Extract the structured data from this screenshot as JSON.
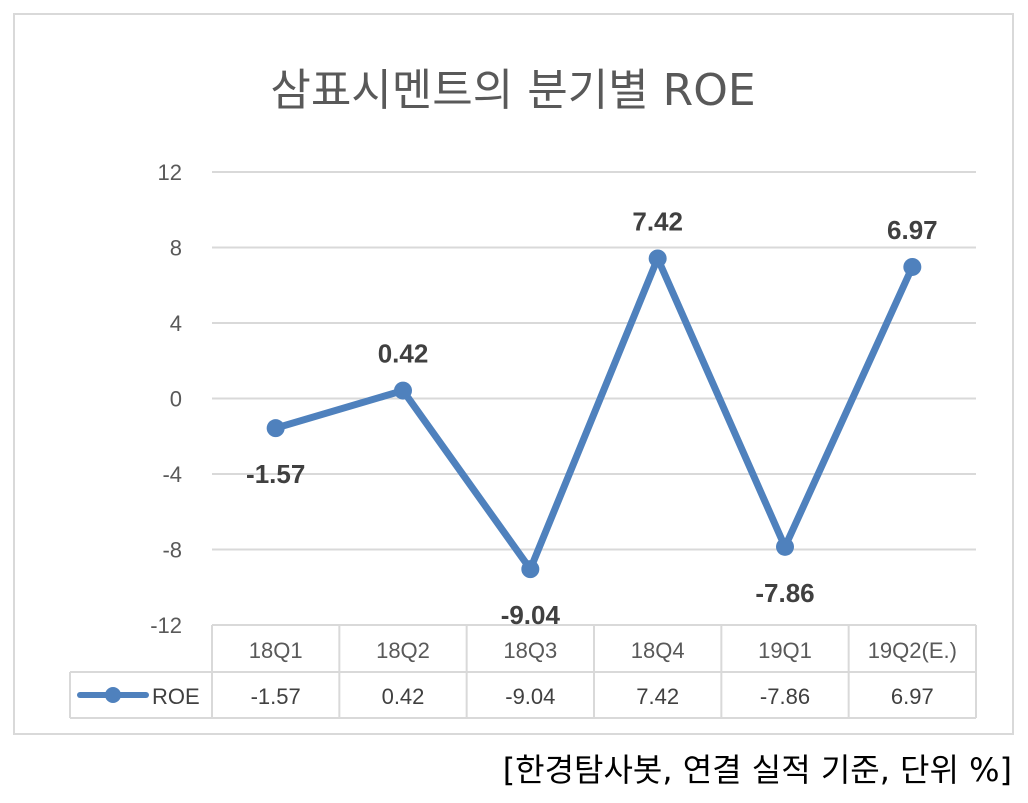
{
  "title": "삼표시멘트의 분기별 ROE",
  "source_note": "[한경탐사봇, 연결 실적 기준, 단위 %]",
  "colors": {
    "series": "#4f81bd",
    "grid": "#d9d9d9",
    "text": "#595959",
    "label": "#404040"
  },
  "chart_data": {
    "type": "line",
    "title": "삼표시멘트의 분기별 ROE",
    "categories": [
      "18Q1",
      "18Q2",
      "18Q3",
      "18Q4",
      "19Q1",
      "19Q2(E.)"
    ],
    "series": [
      {
        "name": "ROE",
        "values": [
          -1.57,
          0.42,
          -9.04,
          7.42,
          -7.86,
          6.97
        ],
        "labels": [
          "-1.57",
          "0.42",
          "-9.04",
          "7.42",
          "-7.86",
          "6.97"
        ]
      }
    ],
    "yticks": [
      "12",
      "8",
      "4",
      "0",
      "-4",
      "-8",
      "-12"
    ],
    "ylim": [
      -12,
      12
    ],
    "grid": true,
    "data_table": true,
    "legend": "in data table"
  }
}
